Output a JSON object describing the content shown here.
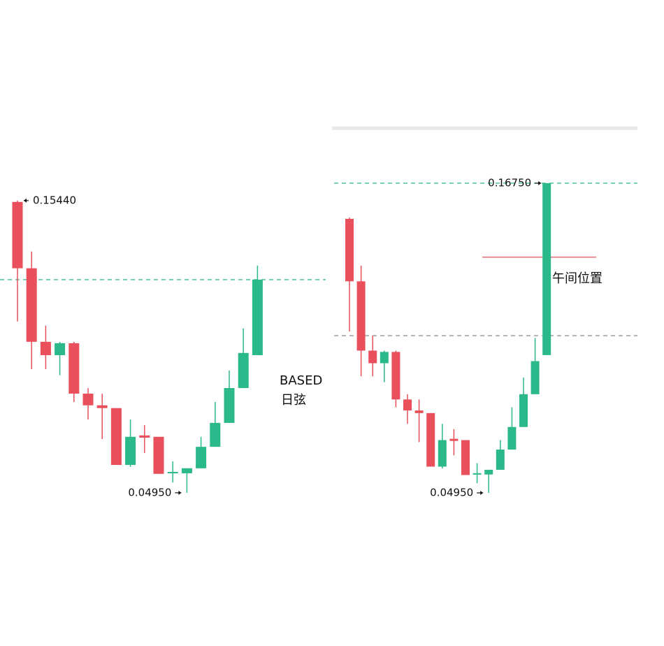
{
  "chart_data": [
    {
      "type": "candlestick",
      "up_color": "#2bb88a",
      "down_color": "#e9505c",
      "ylim": [
        0.0457,
        0.1762
      ],
      "open": [
        0.1539,
        0.1301,
        0.1037,
        0.0989,
        0.1032,
        0.0851,
        0.0809,
        0.0799,
        0.0595,
        0.0701,
        0.0696,
        0.0565,
        0.0565,
        0.0583,
        0.066,
        0.0746,
        0.0871,
        0.0989
      ],
      "high": [
        0.1544,
        0.1361,
        0.1095,
        0.1037,
        0.1037,
        0.0871,
        0.0851,
        0.0799,
        0.0758,
        0.0738,
        0.0696,
        0.0608,
        0.0583,
        0.0696,
        0.0821,
        0.0934,
        0.1085,
        0.1311
      ],
      "low": [
        0.111,
        0.0939,
        0.0939,
        0.0917,
        0.0821,
        0.0758,
        0.0688,
        0.0595,
        0.0588,
        0.0638,
        0.0563,
        0.0532,
        0.0495,
        0.0583,
        0.066,
        0.0746,
        0.0871,
        0.0989
      ],
      "close": [
        0.1301,
        0.1037,
        0.0989,
        0.1032,
        0.0851,
        0.0809,
        0.0799,
        0.0595,
        0.0696,
        0.0693,
        0.0563,
        0.057,
        0.0583,
        0.066,
        0.0746,
        0.0871,
        0.0997,
        0.126
      ],
      "price_labels": [
        {
          "value": 0.1544,
          "label": "0.15440"
        },
        {
          "value": 0.0495,
          "label": "0.04950"
        }
      ],
      "hlines": [
        {
          "value": 0.126,
          "color": "#2bb88a",
          "dashed": true
        }
      ],
      "annotations": [
        "BASED",
        "日弦"
      ]
    },
    {
      "type": "candlestick",
      "up_color": "#2bb88a",
      "down_color": "#e9505c",
      "ylim": [
        0.0455,
        0.188
      ],
      "open": [
        0.1539,
        0.1301,
        0.1037,
        0.0989,
        0.1032,
        0.0851,
        0.0809,
        0.0799,
        0.0595,
        0.0701,
        0.0696,
        0.0565,
        0.0565,
        0.0583,
        0.066,
        0.0746,
        0.0871,
        0.102
      ],
      "high": [
        0.1544,
        0.1361,
        0.1095,
        0.1037,
        0.1037,
        0.0871,
        0.0851,
        0.0799,
        0.0758,
        0.0738,
        0.0696,
        0.0608,
        0.0583,
        0.0696,
        0.0821,
        0.0934,
        0.1085,
        0.1675
      ],
      "low": [
        0.111,
        0.0939,
        0.0939,
        0.0917,
        0.0821,
        0.0758,
        0.0688,
        0.0595,
        0.0588,
        0.0638,
        0.0563,
        0.0532,
        0.0495,
        0.0583,
        0.066,
        0.0746,
        0.0871,
        0.102
      ],
      "close": [
        0.1301,
        0.1037,
        0.0989,
        0.1032,
        0.0851,
        0.0809,
        0.0799,
        0.0595,
        0.0696,
        0.0693,
        0.0563,
        0.057,
        0.0583,
        0.066,
        0.0746,
        0.0871,
        0.0997,
        0.1675
      ],
      "price_labels": [
        {
          "value": 0.1675,
          "label": "0.16750"
        },
        {
          "value": 0.0495,
          "label": "0.04950"
        }
      ],
      "hlines": [
        {
          "value": 0.1675,
          "color": "#2bb88a",
          "dashed": true
        },
        {
          "value": 0.1094,
          "color": "#888888",
          "dashed": true
        },
        {
          "value": 0.1393,
          "color": "#e9505c",
          "dashed": false
        }
      ],
      "annotations": [
        "午间位置"
      ]
    }
  ]
}
